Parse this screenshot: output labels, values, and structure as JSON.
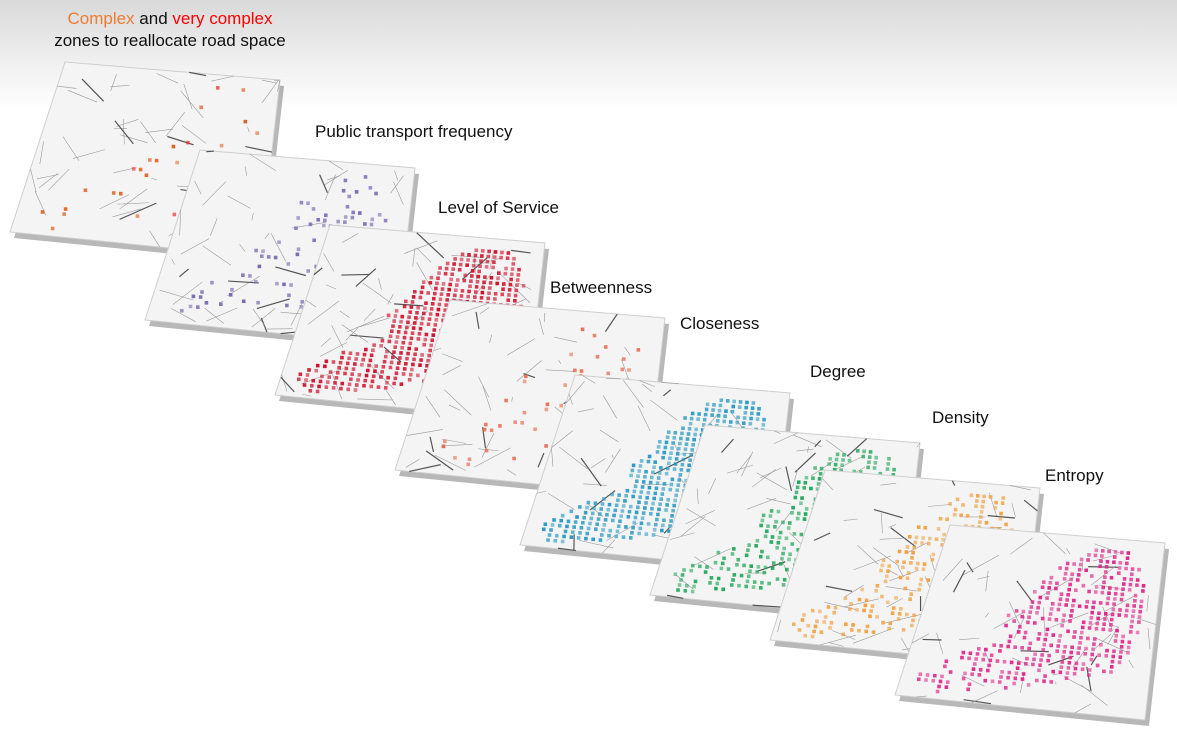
{
  "title": {
    "word_complex": "Complex",
    "word_and": " and ",
    "word_very_complex": "very complex",
    "line2": "zones to reallocate road space"
  },
  "layers": [
    {
      "id": "complex-zones",
      "label": "",
      "color": "#e06020",
      "accent": "#ee2222",
      "fill": 0.06
    },
    {
      "id": "public-transport-frequency",
      "label": "Public transport frequency",
      "color": "#7b6bb3",
      "fill": 0.18
    },
    {
      "id": "level-of-service",
      "label": "Level of Service",
      "color": "#d0102a",
      "fill": 0.85
    },
    {
      "id": "betweenness",
      "label": "Betweenness",
      "color": "#e8674a",
      "fill": 0.14
    },
    {
      "id": "closeness",
      "label": "Closeness",
      "color": "#2a9ac4",
      "fill": 0.9
    },
    {
      "id": "degree",
      "label": "Degree",
      "color": "#22a85a",
      "fill": 0.6
    },
    {
      "id": "density",
      "label": "Density",
      "color": "#f0a040",
      "fill": 0.45
    },
    {
      "id": "entropy",
      "label": "Entropy",
      "color": "#e0288a",
      "fill": 0.6
    }
  ]
}
